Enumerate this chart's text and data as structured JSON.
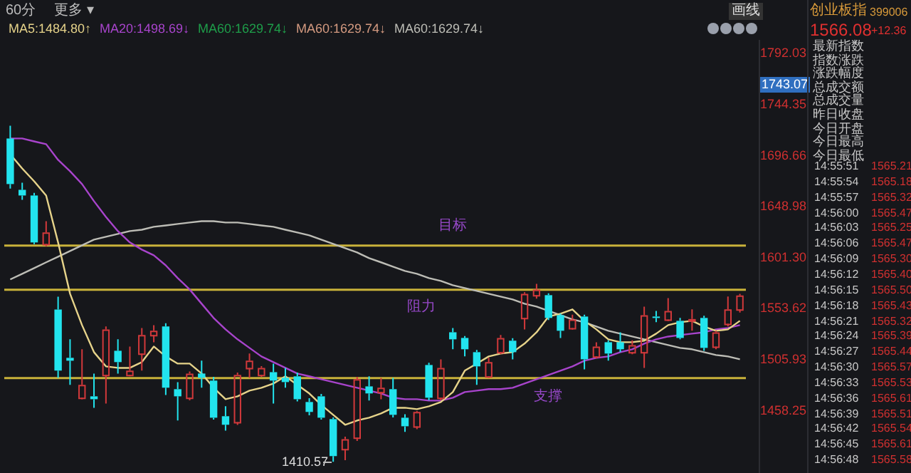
{
  "chart_data": {
    "type": "candlestick",
    "categories": [
      null,
      null,
      null,
      null,
      null,
      null,
      null,
      null,
      null,
      null,
      null,
      null,
      null,
      null,
      null,
      null,
      null,
      null,
      null,
      null,
      null,
      null,
      null,
      null,
      null,
      null,
      null,
      null,
      null,
      null,
      null,
      null,
      null,
      null,
      null,
      null,
      null,
      null,
      null,
      null,
      null,
      null,
      null,
      null,
      null,
      null,
      null,
      null,
      null,
      null,
      null,
      null,
      null,
      null,
      null,
      null,
      null,
      null,
      null,
      null,
      null,
      null
    ],
    "ohlc": [
      [
        1712.8,
        1724.8,
        1666,
        1670.2
      ],
      [
        1664.8,
        1671.5,
        1655.5,
        1659.5
      ],
      [
        1659.5,
        1662,
        1614,
        1615.6
      ],
      [
        1614.2,
        1635.5,
        1612,
        1624.9
      ],
      [
        1552.9,
        1564.9,
        1489,
        1495.7
      ],
      [
        1507.7,
        1525,
        1482.4,
        1505
      ],
      [
        1470.4,
        1515.7,
        1469,
        1482.4
      ],
      [
        1471.7,
        1493,
        1461,
        1469
      ],
      [
        1491.7,
        1537,
        1465,
        1534.3
      ],
      [
        1514.3,
        1525,
        1493,
        1503.7
      ],
      [
        1491.7,
        1518.3,
        1490.4,
        1495.7
      ],
      [
        1511.7,
        1535.6,
        1495.7,
        1529
      ],
      [
        1529,
        1538.3,
        1522.3,
        1533
      ],
      [
        1537,
        1540,
        1473,
        1479.7
      ],
      [
        1478.4,
        1485,
        1449.1,
        1471.7
      ],
      [
        1470.4,
        1495,
        1468,
        1493
      ],
      [
        1493,
        1505,
        1479.7,
        1489
      ],
      [
        1486.4,
        1490,
        1450,
        1451.7
      ],
      [
        1453.1,
        1462.4,
        1439.7,
        1445.1
      ],
      [
        1447.7,
        1494,
        1445,
        1491.7
      ],
      [
        1498.3,
        1511.7,
        1489,
        1505
      ],
      [
        1491.7,
        1500,
        1490,
        1498.3
      ],
      [
        1494.3,
        1502.3,
        1465,
        1486.4
      ],
      [
        1489,
        1498.3,
        1479.7,
        1485
      ],
      [
        1490.4,
        1494,
        1467,
        1469
      ],
      [
        1466.4,
        1470,
        1454,
        1457.1
      ],
      [
        1471.7,
        1474,
        1450,
        1451.7
      ],
      [
        1450.4,
        1452,
        1410.57,
        1415.8
      ],
      [
        1422.4,
        1434,
        1412,
        1431.7
      ],
      [
        1433.1,
        1490,
        1430,
        1487.7
      ],
      [
        1481,
        1490.4,
        1467.7,
        1474.4
      ],
      [
        1475.7,
        1489,
        1469,
        1479.7
      ],
      [
        1478.4,
        1489,
        1452,
        1454.4
      ],
      [
        1451.7,
        1455,
        1438.4,
        1443.7
      ],
      [
        1443.7,
        1458,
        1441,
        1457.1
      ],
      [
        1501,
        1503,
        1468,
        1470.4
      ],
      [
        1470.4,
        1506.3,
        1468,
        1498.3
      ],
      [
        1531.6,
        1535.6,
        1515.7,
        1525
      ],
      [
        1526.3,
        1528,
        1509,
        1515.7
      ],
      [
        1513,
        1515,
        1482.4,
        1499.7
      ],
      [
        1490.4,
        1507.7,
        1489,
        1503.7
      ],
      [
        1513,
        1529,
        1511,
        1526.3
      ],
      [
        1523.7,
        1526,
        1506.3,
        1513
      ],
      [
        1545,
        1569,
        1534.3,
        1567.6
      ],
      [
        1566.3,
        1576.9,
        1563,
        1571.6
      ],
      [
        1566.3,
        1568,
        1543,
        1545
      ],
      [
        1547.6,
        1549,
        1526.3,
        1533
      ],
      [
        1535.6,
        1548,
        1534,
        1543.6
      ],
      [
        1546.3,
        1548,
        1497,
        1506.3
      ],
      [
        1509,
        1522.3,
        1507,
        1518.3
      ],
      [
        1522.3,
        1524,
        1505,
        1511.7
      ],
      [
        1522.3,
        1531.6,
        1513,
        1515.7
      ],
      [
        1513,
        1524,
        1511,
        1519.6
      ],
      [
        1513,
        1555.6,
        1498.3,
        1547.6
      ],
      [
        1546.3,
        1551.6,
        1541,
        1545
      ],
      [
        1543.6,
        1563.6,
        1542,
        1551.6
      ],
      [
        1542.3,
        1545,
        1525,
        1526.3
      ],
      [
        1543,
        1553,
        1533,
        1544
      ],
      [
        1545,
        1547,
        1514.3,
        1517
      ],
      [
        1518.3,
        1533,
        1515.7,
        1531.6
      ],
      [
        1539.6,
        1565,
        1537,
        1553
      ],
      [
        1553,
        1567.6,
        1550,
        1566.08
      ]
    ],
    "series": [
      {
        "name": "MA5:1484.80↑",
        "type": "line",
        "color": "#e6d38a",
        "values": [
          1698.1,
          1684.8,
          1672.8,
          1659.5,
          1615.6,
          1567.6,
          1538.3,
          1513,
          1499.7,
          1498.3,
          1498.3,
          1503.7,
          1518.3,
          1509,
          1502.3,
          1502.3,
          1493,
          1479.7,
          1469,
          1471.7,
          1477,
          1479.7,
          1483.7,
          1490.4,
          1482.4,
          1474.4,
          1463.7,
          1454.4,
          1445.1,
          1449.1,
          1451.7,
          1455.7,
          1461,
          1461,
          1459.7,
          1462.4,
          1466.4,
          1475.7,
          1495.7,
          1502.3,
          1509,
          1511.7,
          1513,
          1521,
          1531.6,
          1546.3,
          1549,
          1553,
          1542.3,
          1534.3,
          1525,
          1522.3,
          1522.3,
          1523.7,
          1530.3,
          1538.3,
          1541,
          1542.3,
          1537,
          1533,
          1534.3,
          1542.3
        ]
      },
      {
        "name": "MA20:1498.69↓",
        "type": "line",
        "color": "#a844cc",
        "values": [
          1712.8,
          1712.8,
          1710.1,
          1707.5,
          1692.8,
          1682.2,
          1670.2,
          1654.2,
          1639.5,
          1626.2,
          1615.6,
          1608.9,
          1603.6,
          1594.2,
          1582.3,
          1571.6,
          1558.3,
          1545,
          1534.3,
          1525,
          1517,
          1509,
          1503.7,
          1498.3,
          1493,
          1490.4,
          1487.7,
          1485,
          1482.4,
          1479.7,
          1477,
          1474.4,
          1470.4,
          1469,
          1469,
          1467.7,
          1467.7,
          1470.4,
          1475.7,
          1477,
          1478.4,
          1478.4,
          1479.7,
          1483.7,
          1487.7,
          1491.7,
          1495.7,
          1499.7,
          1505,
          1507.7,
          1509,
          1513,
          1515.7,
          1521,
          1525,
          1527.6,
          1529,
          1530.3,
          1531.6,
          1534.3,
          1535.6,
          1538.3
        ]
      },
      {
        "name": "MA60:1629.74↓",
        "type": "line",
        "color": "#bdbdb6",
        "values": [
          1581,
          1586.3,
          1591.6,
          1597,
          1602.2,
          1607.6,
          1612.9,
          1618.2,
          1620.9,
          1623.6,
          1626.2,
          1627.5,
          1630.2,
          1631.5,
          1632.9,
          1634.2,
          1635.5,
          1635.5,
          1634.2,
          1634.2,
          1632.9,
          1631.5,
          1630.2,
          1627.5,
          1624.9,
          1622.2,
          1618.2,
          1614.2,
          1610.2,
          1606.2,
          1600.9,
          1597,
          1593,
          1588.9,
          1586.3,
          1582.3,
          1579.6,
          1575.6,
          1572.9,
          1570.3,
          1567.6,
          1564.9,
          1562.3,
          1558.3,
          1555.6,
          1551.6,
          1547.6,
          1543.6,
          1541,
          1537,
          1533,
          1530.3,
          1527.6,
          1525,
          1522.3,
          1519.7,
          1517,
          1515.7,
          1513,
          1510.3,
          1509,
          1506.3
        ]
      }
    ],
    "ylim": [
      1400,
      1805
    ],
    "yticks": [
      1458.25,
      1505.93,
      1553.62,
      {
        "value": 1601.3,
        "label": "1601.30"
      },
      1648.98,
      1696.66,
      1744.35,
      1792.03
    ],
    "tick_labels": "y",
    "grid": false,
    "legend": "top left",
    "ref_lines": [
      {
        "axis": "y",
        "value": 1612.6,
        "label": "目标",
        "color": "#c9b23a"
      },
      {
        "axis": "y",
        "value": 1571.3,
        "label": "阻力",
        "color": "#c9b23a"
      },
      {
        "axis": "y",
        "value": 1488.7,
        "label": "支撑",
        "color": "#c9b23a"
      }
    ],
    "annotations": [
      "60分",
      "更多 ▾",
      "画线",
      "MA60:1629.74↓",
      "MA60:1629.74↓",
      "创业板指",
      "399006",
      "1566.08",
      "+12.36",
      "最新指数",
      "指数涨跌",
      "涨跌幅度",
      "总成交额",
      "总成交量",
      "昨日收盘",
      "今日开盘",
      "今日最高",
      "今日最低",
      "14:55:51",
      "14:55:54",
      "14:55:57",
      "14:56:00",
      "14:56:03",
      "14:56:06",
      "14:56:09",
      "14:56:12",
      "14:56:15",
      "14:56:18",
      "14:56:21",
      "14:56:24",
      "14:56:27",
      "14:56:30",
      "14:56:33",
      "14:56:36",
      "14:56:39",
      "14:56:42",
      "14:56:45",
      "14:56:48",
      "1565.21",
      "1565.18",
      "1565.32",
      "1565.47",
      "1565.25",
      "1565.47",
      "1565.30",
      "1565.40",
      "1565.50",
      "1565.43",
      "1565.32",
      "1565.39",
      "1565.44",
      "1565.57",
      "1565.53",
      "1565.61",
      "1565.51",
      "1565.54",
      "1565.61",
      "1565.58",
      "1410.57",
      "1743.07"
    ]
  }
}
